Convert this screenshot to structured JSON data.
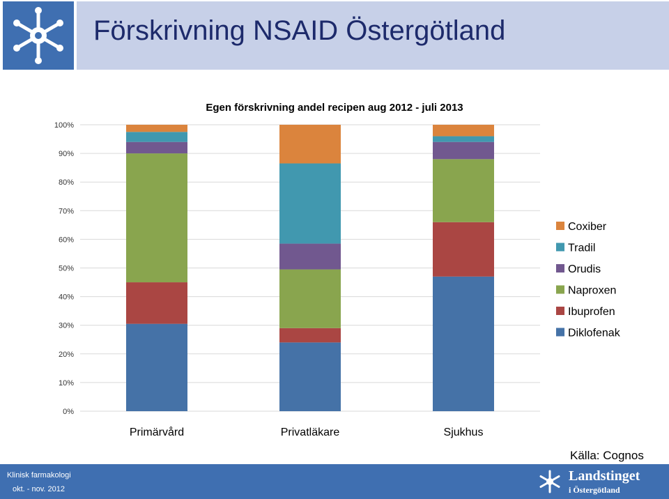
{
  "header": {
    "title": "Förskrivning NSAID Östergötland"
  },
  "footer": {
    "department": "Klinisk farmakologi",
    "date": "okt. - nov. 2012",
    "org_name": "Landstinget",
    "org_sub": "i Östergötland"
  },
  "source": "Källa: Cognos",
  "chart_data": {
    "type": "bar",
    "stacked": true,
    "title": "Egen förskrivning andel recipen aug 2012 - juli 2013",
    "categories": [
      "Primärvård",
      "Privatläkare",
      "Sjukhus"
    ],
    "ylim": [
      0,
      100
    ],
    "yticks": [
      "0%",
      "10%",
      "20%",
      "30%",
      "40%",
      "50%",
      "60%",
      "70%",
      "80%",
      "90%",
      "100%"
    ],
    "legend_position": "right",
    "series": [
      {
        "name": "Diklofenak",
        "color": "#4572a7",
        "values": [
          30.5,
          24,
          47
        ]
      },
      {
        "name": "Ibuprofen",
        "color": "#aa4643",
        "values": [
          14.5,
          5,
          19
        ]
      },
      {
        "name": "Naproxen",
        "color": "#89a54e",
        "values": [
          45,
          20.5,
          22
        ]
      },
      {
        "name": "Orudis",
        "color": "#71588f",
        "values": [
          4,
          9,
          6
        ]
      },
      {
        "name": "Tradil",
        "color": "#4198af",
        "values": [
          3.5,
          28,
          2
        ]
      },
      {
        "name": "Coxiber",
        "color": "#db843d",
        "values": [
          2.5,
          13.5,
          4
        ]
      }
    ]
  }
}
